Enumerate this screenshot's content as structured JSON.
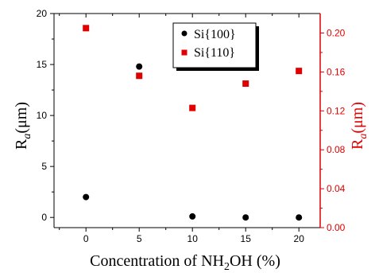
{
  "chart_data": {
    "type": "scatter",
    "x_axis": {
      "label_main": "Concentration of NH",
      "label_sub": "2",
      "label_end": "OH (%)",
      "range": [
        -3,
        22
      ],
      "ticks": [
        0,
        5,
        10,
        15,
        20
      ]
    },
    "y_axes": {
      "left": {
        "label_main": "R",
        "label_sub": "a",
        "label_end": "(μm)",
        "range": [
          -1,
          20
        ],
        "ticks": [
          0,
          5,
          10,
          15,
          20
        ],
        "color": "#000000"
      },
      "right": {
        "label_main": "R",
        "label_sub": "a",
        "label_end": "(μm)",
        "range": [
          0,
          0.22
        ],
        "ticks": [
          0.0,
          0.04,
          0.08,
          0.12,
          0.16,
          0.2
        ],
        "tick_labels": [
          "0.00",
          "0.04",
          "0.08",
          "0.12",
          "0.16",
          "0.20"
        ],
        "color": "#e00000"
      }
    },
    "series": [
      {
        "name": "Si{100}",
        "axis": "left",
        "marker": "circle",
        "color": "#000000",
        "x": [
          0,
          5,
          10,
          15,
          20
        ],
        "y": [
          2.0,
          14.8,
          0.1,
          0.0,
          0.0
        ]
      },
      {
        "name": "Si{110}",
        "axis": "right",
        "marker": "square",
        "color": "#e00000",
        "x": [
          0,
          5,
          10,
          15,
          20
        ],
        "y": [
          0.205,
          0.156,
          0.123,
          0.148,
          0.161
        ]
      }
    ],
    "legend_position": "top-center"
  }
}
